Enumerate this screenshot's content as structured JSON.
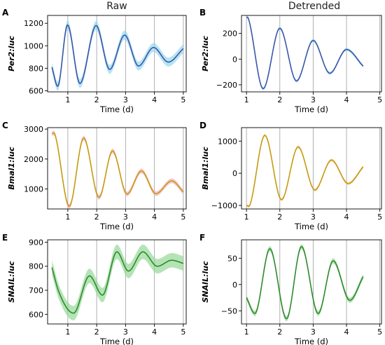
{
  "column_titles": [
    "Raw",
    "Detrended"
  ],
  "chart_data": [
    {
      "panel": "A",
      "type": "line",
      "title": "",
      "xlabel": "Time (d)",
      "ylabel": "Per2:luc",
      "xlim": [
        0.3,
        5.1
      ],
      "ylim": [
        590,
        1270
      ],
      "xticks": [
        1,
        2,
        3,
        4,
        5
      ],
      "yticks": [
        600,
        800,
        1000,
        1200
      ],
      "vlines": [
        1,
        2,
        3,
        4,
        5
      ],
      "color": "#3a56a8",
      "band_color": "#8fd6ec",
      "x_start": 0.45,
      "x_end": 5.0,
      "band": 40,
      "series": [
        {
          "x": [
            0.45,
            0.65,
            0.99,
            1.42,
            1.98,
            2.45,
            2.97,
            3.45,
            3.97,
            4.48,
            5.0
          ],
          "values": [
            810,
            640,
            1185,
            665,
            1180,
            790,
            1095,
            820,
            985,
            855,
            975
          ]
        }
      ]
    },
    {
      "panel": "B",
      "type": "line",
      "title": "",
      "xlabel": "Time (d)",
      "ylabel": "Per2:luc",
      "xlim": [
        0.85,
        5.05
      ],
      "ylim": [
        -255,
        340
      ],
      "xticks": [
        1,
        2,
        3,
        4,
        5
      ],
      "yticks": [
        -200,
        0,
        200
      ],
      "vlines": [
        1,
        2,
        3,
        4,
        5
      ],
      "color": "#3a56a8",
      "band_color": "#8fd6ec",
      "x_start": 1.0,
      "x_end": 4.5,
      "band": 12,
      "series": [
        {
          "x": [
            1.0,
            1.05,
            1.5,
            2.0,
            2.5,
            3.0,
            3.5,
            4.0,
            4.5
          ],
          "values": [
            325,
            320,
            -230,
            240,
            -170,
            145,
            -110,
            75,
            -55
          ]
        }
      ]
    },
    {
      "panel": "C",
      "type": "line",
      "title": "",
      "xlabel": "Time (d)",
      "ylabel": "Bmal1:luc",
      "xlim": [
        0.3,
        5.1
      ],
      "ylim": [
        330,
        3050
      ],
      "xticks": [
        1,
        2,
        3,
        4,
        5
      ],
      "yticks": [
        1000,
        2000,
        3000
      ],
      "vlines": [
        1,
        2,
        3,
        4,
        5
      ],
      "color": "#c79a10",
      "band_color": "#f2a9bd",
      "x_start": 0.45,
      "x_end": 5.0,
      "band": 80,
      "series": [
        {
          "x": [
            0.45,
            0.55,
            1.05,
            1.55,
            2.08,
            2.55,
            3.05,
            3.55,
            4.05,
            4.6,
            5.0
          ],
          "values": [
            2850,
            2830,
            420,
            2700,
            720,
            2270,
            830,
            1600,
            840,
            1270,
            900
          ]
        }
      ]
    },
    {
      "panel": "D",
      "type": "line",
      "title": "",
      "xlabel": "Time (d)",
      "ylabel": "Bmal1:luc",
      "xlim": [
        0.85,
        5.05
      ],
      "ylim": [
        -1110,
        1420
      ],
      "xticks": [
        1,
        2,
        3,
        4,
        5
      ],
      "yticks": [
        -1000,
        0,
        1000
      ],
      "vlines": [
        1,
        2,
        3,
        4,
        5
      ],
      "color": "#c79a10",
      "band_color": "#f2c48a",
      "x_start": 1.0,
      "x_end": 4.5,
      "band": 45,
      "series": [
        {
          "x": [
            1.0,
            1.1,
            1.55,
            2.05,
            2.55,
            3.05,
            3.55,
            4.05,
            4.5
          ],
          "values": [
            -1000,
            -990,
            1180,
            -820,
            820,
            -520,
            410,
            -320,
            200
          ]
        }
      ]
    },
    {
      "panel": "E",
      "type": "line",
      "title": "",
      "xlabel": "Time (d)",
      "ylabel": "SNAIL:luc",
      "xlim": [
        0.3,
        5.1
      ],
      "ylim": [
        560,
        910
      ],
      "xticks": [
        1,
        2,
        3,
        4,
        5
      ],
      "yticks": [
        600,
        700,
        800,
        900
      ],
      "vlines": [
        1,
        2,
        3,
        4,
        5
      ],
      "color": "#2f8a2c",
      "band_color": "#8cd68f",
      "x_start": 0.45,
      "x_end": 5.0,
      "band": 30,
      "series": [
        {
          "x": [
            0.45,
            0.7,
            1.2,
            1.75,
            2.2,
            2.7,
            3.1,
            3.6,
            4.1,
            4.6,
            5.0
          ],
          "values": [
            795,
            690,
            605,
            760,
            680,
            860,
            780,
            860,
            800,
            825,
            812
          ]
        }
      ]
    },
    {
      "panel": "F",
      "type": "line",
      "title": "",
      "xlabel": "Time (d)",
      "ylabel": "SNAIL:luc",
      "xlim": [
        0.85,
        5.05
      ],
      "ylim": [
        -75,
        85
      ],
      "xticks": [
        1,
        2,
        3,
        4,
        5
      ],
      "yticks": [
        -50,
        0,
        50
      ],
      "vlines": [
        1,
        2,
        3,
        4,
        5
      ],
      "color": "#2f8a2c",
      "band_color": "#8cd68f",
      "x_start": 1.0,
      "x_end": 4.5,
      "band": 5,
      "series": [
        {
          "x": [
            1.0,
            1.25,
            1.7,
            2.2,
            2.65,
            3.15,
            3.6,
            4.1,
            4.5
          ],
          "values": [
            -25,
            -55,
            68,
            -65,
            72,
            -55,
            45,
            -30,
            15
          ]
        }
      ]
    }
  ]
}
